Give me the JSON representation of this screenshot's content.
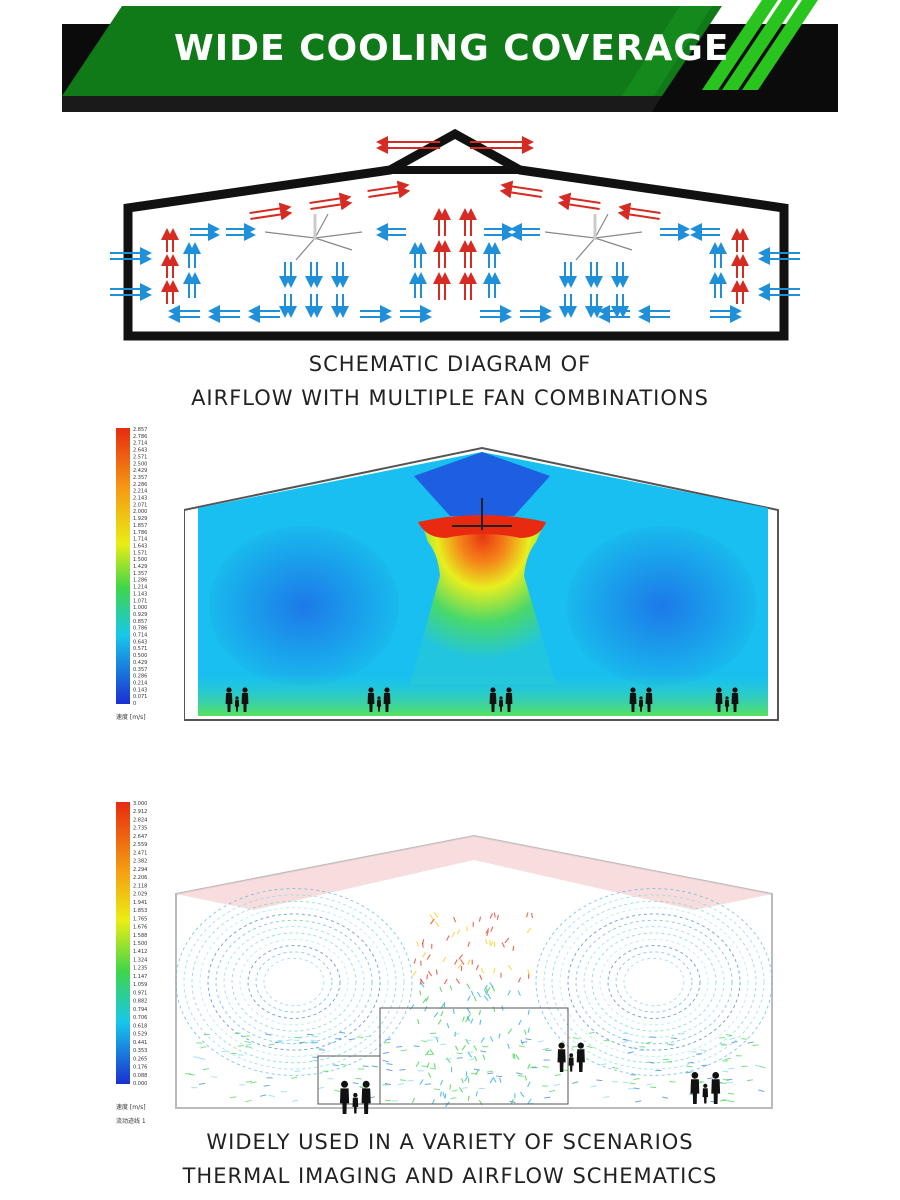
{
  "banner": {
    "title": "WIDE COOLING COVERAGE",
    "colors": {
      "green": "#0f7a17",
      "dark": "#0b0b0b",
      "accent": "#29c41d"
    }
  },
  "section1": {
    "caption_line1": "SCHEMATIC DIAGRAM OF",
    "caption_line2": "AIRFLOW WITH MULTIPLE FAN COMBINATIONS",
    "arrow_colors": {
      "hot": "#d62b22",
      "cool": "#1f8fd8"
    }
  },
  "section2": {
    "scale_labels": [
      "2.857",
      "2.786",
      "2.714",
      "2.643",
      "2.571",
      "2.500",
      "2.429",
      "2.357",
      "2.286",
      "2.214",
      "2.143",
      "2.071",
      "2.000",
      "1.929",
      "1.857",
      "1.786",
      "1.714",
      "1.643",
      "1.571",
      "1.500",
      "1.429",
      "1.357",
      "1.286",
      "1.214",
      "1.143",
      "1.071",
      "1.000",
      "0.929",
      "0.857",
      "0.786",
      "0.714",
      "0.643",
      "0.571",
      "0.500",
      "0.429",
      "0.357",
      "0.286",
      "0.214",
      "0.143",
      "0.071",
      "0"
    ],
    "unit": "速度 [m/s]"
  },
  "section3": {
    "scale_labels": [
      "3.000",
      "2.912",
      "2.824",
      "2.735",
      "2.647",
      "2.559",
      "2.471",
      "2.382",
      "2.294",
      "2.206",
      "2.118",
      "2.029",
      "1.941",
      "1.853",
      "1.765",
      "1.676",
      "1.588",
      "1.500",
      "1.412",
      "1.324",
      "1.235",
      "1.147",
      "1.059",
      "0.971",
      "0.882",
      "0.794",
      "0.706",
      "0.618",
      "0.529",
      "0.441",
      "0.353",
      "0.265",
      "0.176",
      "0.088",
      "0.000"
    ],
    "unit": "速度 [m/s]",
    "unit2": "流动迹线 1",
    "caption_line1": "WIDELY USED IN A VARIETY OF SCENARIOS",
    "caption_line2": "THERMAL IMAGING AND AIRFLOW SCHEMATICS"
  }
}
